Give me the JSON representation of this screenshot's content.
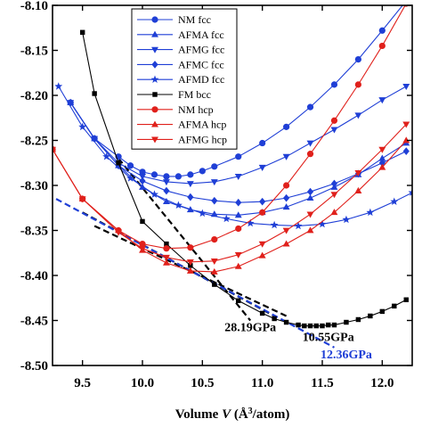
{
  "chart_data": {
    "type": "scatter",
    "xlabel_parts": [
      "Volume ",
      "V",
      " (Å",
      "3",
      "/atom)"
    ],
    "xlim": [
      9.25,
      12.25
    ],
    "ylim": [
      -8.5,
      -8.1
    ],
    "x_ticks": [
      "9.5",
      "10.0",
      "10.5",
      "11.0",
      "11.5",
      "12.0"
    ],
    "x_tick_values": [
      9.5,
      10.0,
      10.5,
      11.0,
      11.5,
      12.0
    ],
    "y_ticks": [
      "-8.10",
      "-8.15",
      "-8.20",
      "-8.25",
      "-8.30",
      "-8.35",
      "-8.40",
      "-8.45",
      "-8.50"
    ],
    "y_tick_values": [
      -8.1,
      -8.15,
      -8.2,
      -8.25,
      -8.3,
      -8.35,
      -8.4,
      -8.45,
      -8.5
    ],
    "legend_placement": "top-center",
    "series": [
      {
        "name": "NM fcc",
        "color": "#1f3fd6",
        "marker": "circle",
        "filled": true,
        "x": [
          9.4,
          9.6,
          9.8,
          9.9,
          10.0,
          10.1,
          10.2,
          10.3,
          10.4,
          10.5,
          10.6,
          10.8,
          11.0,
          11.2,
          11.4,
          11.6,
          11.8,
          12.0,
          12.2
        ],
        "y": [
          -8.208,
          -8.248,
          -8.268,
          -8.278,
          -8.285,
          -8.288,
          -8.29,
          -8.29,
          -8.288,
          -8.284,
          -8.279,
          -8.268,
          -8.253,
          -8.235,
          -8.213,
          -8.188,
          -8.16,
          -8.128,
          -8.095
        ]
      },
      {
        "name": "AFMA fcc",
        "color": "#1f3fd6",
        "marker": "triangle-up",
        "filled": true,
        "x": [
          9.4,
          9.6,
          9.8,
          10.0,
          10.2,
          10.4,
          10.6,
          10.8,
          11.0,
          11.2,
          11.4,
          11.6,
          11.8,
          12.0,
          12.2
        ],
        "y": [
          -8.208,
          -8.248,
          -8.278,
          -8.302,
          -8.318,
          -8.327,
          -8.332,
          -8.333,
          -8.33,
          -8.324,
          -8.314,
          -8.302,
          -8.288,
          -8.27,
          -8.253
        ]
      },
      {
        "name": "AFMG fcc",
        "color": "#1f3fd6",
        "marker": "triangle-down",
        "filled": true,
        "x": [
          9.4,
          9.6,
          9.8,
          10.0,
          10.2,
          10.4,
          10.6,
          10.8,
          11.0,
          11.2,
          11.4,
          11.6,
          11.8,
          12.0,
          12.2
        ],
        "y": [
          -8.208,
          -8.248,
          -8.275,
          -8.29,
          -8.296,
          -8.298,
          -8.296,
          -8.29,
          -8.28,
          -8.268,
          -8.253,
          -8.238,
          -8.222,
          -8.205,
          -8.19
        ]
      },
      {
        "name": "AFMC fcc",
        "color": "#1f3fd6",
        "marker": "diamond",
        "filled": true,
        "x": [
          9.4,
          9.6,
          9.8,
          10.0,
          10.2,
          10.4,
          10.6,
          10.8,
          11.0,
          11.2,
          11.4,
          11.6,
          11.8,
          12.0,
          12.2
        ],
        "y": [
          -8.208,
          -8.248,
          -8.278,
          -8.295,
          -8.306,
          -8.313,
          -8.317,
          -8.319,
          -8.318,
          -8.314,
          -8.307,
          -8.298,
          -8.287,
          -8.275,
          -8.262
        ]
      },
      {
        "name": "AFMD fcc",
        "color": "#1f3fd6",
        "marker": "star",
        "filled": true,
        "x": [
          9.3,
          9.5,
          9.7,
          9.9,
          10.1,
          10.3,
          10.5,
          10.7,
          10.9,
          11.1,
          11.3,
          11.5,
          11.7,
          11.9,
          12.1,
          12.25
        ],
        "y": [
          -8.19,
          -8.235,
          -8.268,
          -8.292,
          -8.31,
          -8.322,
          -8.331,
          -8.337,
          -8.342,
          -8.344,
          -8.345,
          -8.343,
          -8.338,
          -8.33,
          -8.318,
          -8.308
        ]
      },
      {
        "name": "FM bcc",
        "color": "#000000",
        "marker": "square",
        "filled": true,
        "x": [
          9.5,
          9.6,
          9.8,
          10.0,
          10.2,
          10.4,
          10.6,
          10.8,
          11.0,
          11.1,
          11.2,
          11.3,
          11.35,
          11.4,
          11.45,
          11.5,
          11.55,
          11.6,
          11.7,
          11.8,
          11.9,
          12.0,
          12.1,
          12.2
        ],
        "y": [
          -8.13,
          -8.198,
          -8.275,
          -8.34,
          -8.365,
          -8.389,
          -8.41,
          -8.428,
          -8.442,
          -8.448,
          -8.452,
          -8.455,
          -8.456,
          -8.456,
          -8.456,
          -8.456,
          -8.455,
          -8.455,
          -8.452,
          -8.449,
          -8.445,
          -8.44,
          -8.434,
          -8.427
        ]
      },
      {
        "name": "NM hcp",
        "color": "#e0201b",
        "marker": "circle",
        "filled": true,
        "x": [
          9.25,
          9.5,
          9.8,
          10.0,
          10.2,
          10.4,
          10.6,
          10.8,
          11.0,
          11.2,
          11.4,
          11.6,
          11.8,
          12.0,
          12.2
        ],
        "y": [
          -8.26,
          -8.315,
          -8.35,
          -8.365,
          -8.37,
          -8.369,
          -8.36,
          -8.348,
          -8.33,
          -8.3,
          -8.265,
          -8.228,
          -8.188,
          -8.145,
          -8.098
        ]
      },
      {
        "name": "AFMA hcp",
        "color": "#e0201b",
        "marker": "triangle-up",
        "filled": true,
        "x": [
          9.25,
          9.5,
          9.8,
          10.0,
          10.2,
          10.4,
          10.6,
          10.8,
          11.0,
          11.2,
          11.4,
          11.6,
          11.8,
          12.0,
          12.2
        ],
        "y": [
          -8.26,
          -8.315,
          -8.35,
          -8.372,
          -8.386,
          -8.395,
          -8.396,
          -8.39,
          -8.378,
          -8.365,
          -8.35,
          -8.33,
          -8.306,
          -8.28,
          -8.25
        ]
      },
      {
        "name": "AFMG hcp",
        "color": "#e0201b",
        "marker": "triangle-down",
        "filled": true,
        "x": [
          9.25,
          9.5,
          9.8,
          10.0,
          10.2,
          10.4,
          10.6,
          10.8,
          11.0,
          11.2,
          11.4,
          11.6,
          11.8,
          12.0,
          12.2
        ],
        "y": [
          -8.26,
          -8.315,
          -8.352,
          -8.37,
          -8.38,
          -8.385,
          -8.384,
          -8.377,
          -8.365,
          -8.35,
          -8.332,
          -8.31,
          -8.286,
          -8.26,
          -8.232
        ]
      }
    ],
    "tangent_lines": [
      {
        "color": "#000000",
        "x": [
          9.8,
          10.9
        ],
        "y": [
          -8.27,
          -8.45
        ]
      },
      {
        "color": "#000000",
        "x": [
          9.6,
          11.2
        ],
        "y": [
          -8.345,
          -8.445
        ]
      },
      {
        "color": "#000000",
        "x": [
          9.5,
          11.1
        ],
        "y": [
          -8.33,
          -8.445
        ]
      },
      {
        "color": "#1f3fd6",
        "x": [
          9.28,
          11.6
        ],
        "y": [
          -8.315,
          -8.48
        ]
      }
    ],
    "annotations": [
      {
        "text": "28.19GPa",
        "color": "#000000",
        "x": 10.9,
        "y": -8.462
      },
      {
        "text": "10.55GPa",
        "color": "#000000",
        "x": 11.55,
        "y": -8.473
      },
      {
        "text": "12.36GPa",
        "color": "#1f3fd6",
        "x": 11.7,
        "y": -8.492
      }
    ]
  }
}
